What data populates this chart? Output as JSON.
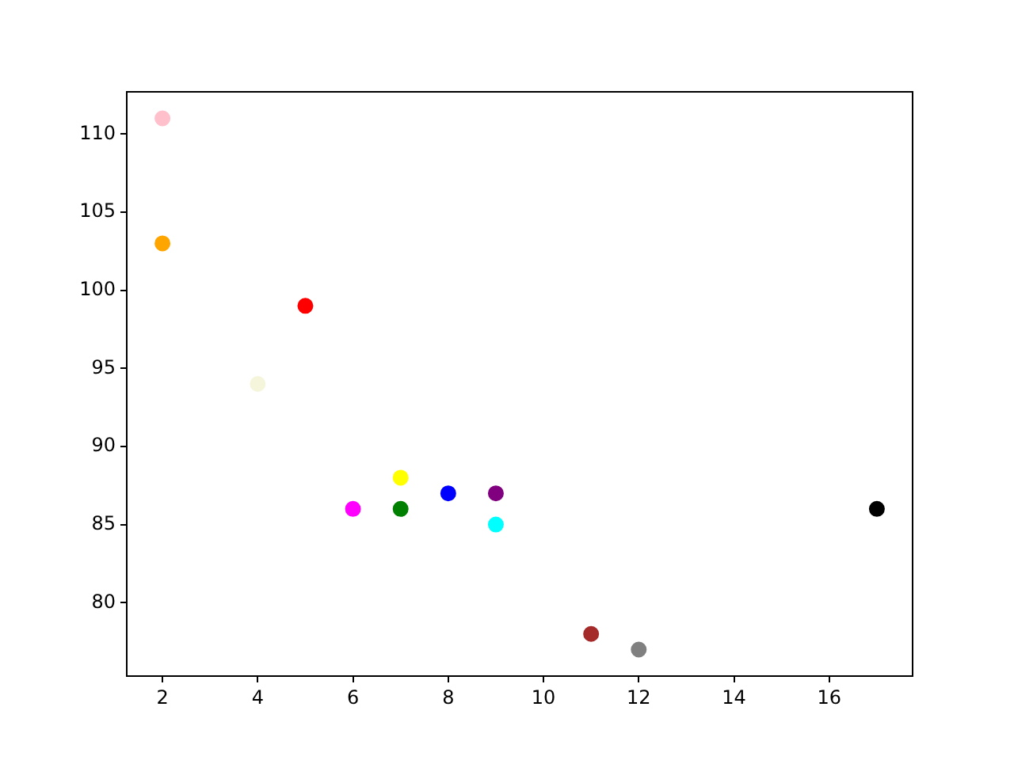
{
  "chart_data": {
    "type": "scatter",
    "x": [
      5,
      7,
      8,
      7,
      2,
      17,
      2,
      9,
      4,
      11,
      12,
      9,
      6
    ],
    "values": [
      99,
      86,
      87,
      88,
      111,
      86,
      103,
      87,
      94,
      78,
      77,
      85,
      86
    ],
    "colors": [
      "#ff0000",
      "#008000",
      "#0000ff",
      "#ffff00",
      "#ffc0cb",
      "#000000",
      "#ffa500",
      "#800080",
      "#f5f5dc",
      "#a52a2a",
      "#808080",
      "#00ffff",
      "#ff00ff"
    ],
    "xlim": [
      1.25,
      17.75
    ],
    "xticks": [
      2,
      4,
      6,
      8,
      10,
      12,
      14,
      16
    ],
    "ylim": [
      75.3,
      112.7
    ],
    "yticks": [
      80,
      85,
      90,
      95,
      100,
      105,
      110
    ],
    "marker": "circle",
    "grid": false,
    "legend": false
  }
}
